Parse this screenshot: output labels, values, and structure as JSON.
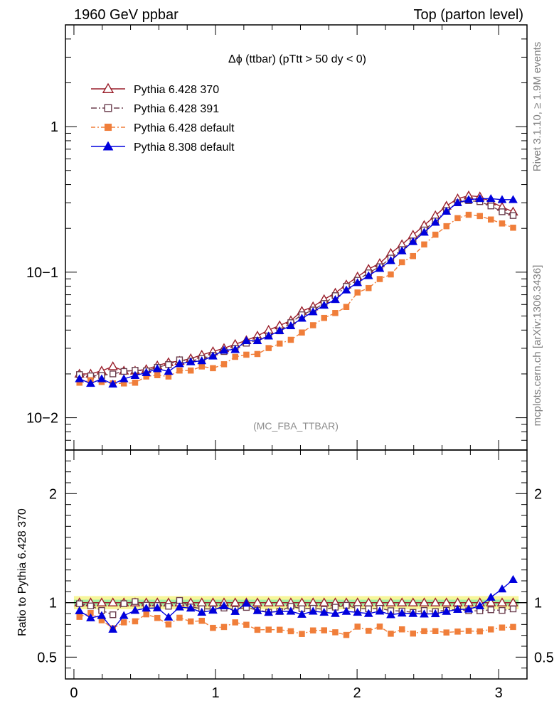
{
  "header": {
    "left": "1960 GeV ppbar",
    "right": "Top (parton level)"
  },
  "side_labels": {
    "rivet": "Rivet 3.1.10, ≥ 1.9M events",
    "mcplots": "mcplots.cern.ch [arXiv:1306.3436]"
  },
  "chart_data": {
    "type": "line",
    "title": "Δϕ (ttbar) (pTtt > 50 dy < 0)",
    "analysis_tag": "(MC_FBA_TTBAR)",
    "main": {
      "yscale": "log",
      "ylim": [
        0.006,
        5
      ],
      "xlim": [
        -0.06,
        3.2
      ],
      "ytick_labels": [
        "10−2",
        "10−1",
        "1"
      ],
      "ytick_values": [
        0.01,
        0.1,
        1
      ]
    },
    "ratio": {
      "ylabel": "Ratio to Pythia 6.428 370",
      "ylim": [
        0.3,
        2.4
      ],
      "ytick_labels": [
        "0.5",
        "1",
        "2"
      ],
      "ytick_values": [
        0.5,
        1,
        2
      ],
      "band_tolerance": 0.06
    },
    "xtick_labels": [
      "0",
      "1",
      "2",
      "3"
    ],
    "xtick_values": [
      0,
      1,
      2,
      3
    ],
    "legend_position": "top-left",
    "x": [
      0.039,
      0.118,
      0.196,
      0.275,
      0.353,
      0.432,
      0.511,
      0.589,
      0.668,
      0.746,
      0.825,
      0.903,
      0.982,
      1.06,
      1.139,
      1.218,
      1.296,
      1.375,
      1.453,
      1.532,
      1.61,
      1.689,
      1.767,
      1.846,
      1.924,
      2.003,
      2.081,
      2.16,
      2.238,
      2.317,
      2.395,
      2.474,
      2.553,
      2.631,
      2.71,
      2.788,
      2.867,
      2.945,
      3.024,
      3.102
    ],
    "series": [
      {
        "name": "Pythia 6.428 370",
        "color": "#9a1f2b",
        "marker": "triangle-open",
        "dash": "none",
        "values": [
          0.02,
          0.02,
          0.021,
          0.0225,
          0.021,
          0.021,
          0.0215,
          0.0228,
          0.024,
          0.0245,
          0.0255,
          0.027,
          0.0285,
          0.03,
          0.032,
          0.034,
          0.0365,
          0.04,
          0.043,
          0.0465,
          0.054,
          0.058,
          0.065,
          0.072,
          0.082,
          0.093,
          0.105,
          0.115,
          0.135,
          0.155,
          0.18,
          0.21,
          0.245,
          0.285,
          0.32,
          0.335,
          0.33,
          0.305,
          0.28,
          0.26
        ]
      },
      {
        "name": "Pythia 6.428 391",
        "color": "#6b3e4e",
        "marker": "square-open",
        "dash": "8,3,2,3",
        "values": [
          0.0198,
          0.0194,
          0.0195,
          0.02,
          0.0208,
          0.0212,
          0.021,
          0.0222,
          0.0232,
          0.025,
          0.0245,
          0.0255,
          0.0268,
          0.0285,
          0.03,
          0.0325,
          0.034,
          0.0365,
          0.0395,
          0.045,
          0.051,
          0.055,
          0.061,
          0.069,
          0.08,
          0.088,
          0.099,
          0.109,
          0.125,
          0.143,
          0.164,
          0.195,
          0.225,
          0.265,
          0.3,
          0.31,
          0.305,
          0.285,
          0.26,
          0.245
        ]
      },
      {
        "name": "Pythia 6.428 default",
        "color": "#f07e3a",
        "marker": "square-filled",
        "dash": "6,3,2,3",
        "values": [
          0.0174,
          0.0181,
          0.0176,
          0.0172,
          0.0172,
          0.0174,
          0.0192,
          0.0196,
          0.0192,
          0.0211,
          0.0211,
          0.0225,
          0.0219,
          0.0233,
          0.0262,
          0.0271,
          0.0274,
          0.0301,
          0.0323,
          0.0343,
          0.0385,
          0.0432,
          0.0485,
          0.0524,
          0.0577,
          0.0725,
          0.0778,
          0.0897,
          0.0965,
          0.117,
          0.129,
          0.155,
          0.181,
          0.207,
          0.235,
          0.248,
          0.243,
          0.23,
          0.216,
          0.202
        ]
      },
      {
        "name": "Pythia 8.308 default",
        "color": "#0000dd",
        "marker": "triangle-filled",
        "dash": "none",
        "values": [
          0.0185,
          0.0172,
          0.0185,
          0.017,
          0.0185,
          0.0195,
          0.0204,
          0.0217,
          0.0208,
          0.0235,
          0.0242,
          0.0246,
          0.0265,
          0.0291,
          0.0294,
          0.0338,
          0.0338,
          0.0364,
          0.0396,
          0.0428,
          0.0482,
          0.0534,
          0.0592,
          0.0648,
          0.0754,
          0.0847,
          0.0945,
          0.106,
          0.12,
          0.14,
          0.162,
          0.188,
          0.22,
          0.262,
          0.3,
          0.315,
          0.32,
          0.32,
          0.315,
          0.315
        ]
      }
    ]
  }
}
